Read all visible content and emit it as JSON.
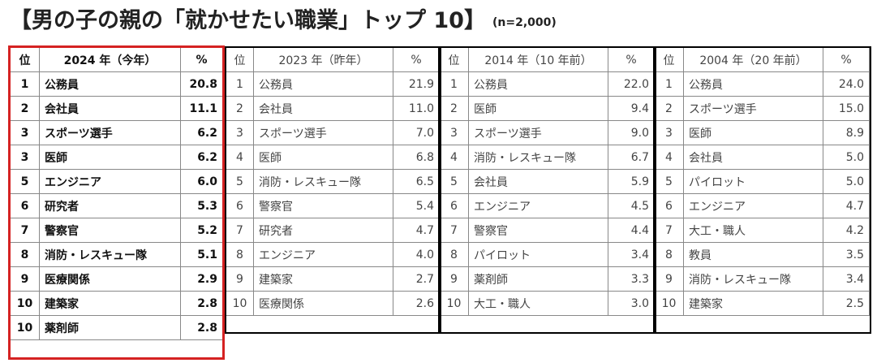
{
  "title": "【男の子の親の「就かせたい職業」トップ 10】",
  "subtitle": "(n=2,000)",
  "tables": [
    {
      "headers": [
        "位",
        "2024 年（今年）",
        "%"
      ],
      "rows": [
        [
          "1",
          "公務員",
          "20.8"
        ],
        [
          "2",
          "会社員",
          "11.1"
        ],
        [
          "3",
          "スポーツ選手",
          "6.2"
        ],
        [
          "3",
          "医師",
          "6.2"
        ],
        [
          "5",
          "エンジニア",
          "6.0"
        ],
        [
          "6",
          "研究者",
          "5.3"
        ],
        [
          "7",
          "警察官",
          "5.2"
        ],
        [
          "8",
          "消防・レスキュー隊",
          "5.1"
        ],
        [
          "9",
          "医療関係",
          "2.9"
        ],
        [
          "10",
          "建築家",
          "2.8"
        ],
        [
          "10",
          "薬剤師",
          "2.8"
        ]
      ]
    },
    {
      "headers": [
        "位",
        "2023 年（昨年）",
        "%"
      ],
      "rows": [
        [
          "1",
          "公務員",
          "21.9"
        ],
        [
          "2",
          "会社員",
          "11.0"
        ],
        [
          "3",
          "スポーツ選手",
          "7.0"
        ],
        [
          "4",
          "医師",
          "6.8"
        ],
        [
          "5",
          "消防・レスキュー隊",
          "6.5"
        ],
        [
          "6",
          "警察官",
          "5.4"
        ],
        [
          "7",
          "研究者",
          "4.7"
        ],
        [
          "8",
          "エンジニア",
          "4.0"
        ],
        [
          "9",
          "建築家",
          "2.7"
        ],
        [
          "10",
          "医療関係",
          "2.6"
        ]
      ]
    },
    {
      "headers": [
        "位",
        "2014 年（10 年前）",
        "%"
      ],
      "rows": [
        [
          "1",
          "公務員",
          "22.0"
        ],
        [
          "2",
          "医師",
          "9.4"
        ],
        [
          "3",
          "スポーツ選手",
          "9.0"
        ],
        [
          "4",
          "消防・レスキュー隊",
          "6.7"
        ],
        [
          "5",
          "会社員",
          "5.9"
        ],
        [
          "6",
          "エンジニア",
          "4.5"
        ],
        [
          "7",
          "警察官",
          "4.4"
        ],
        [
          "8",
          "パイロット",
          "3.4"
        ],
        [
          "9",
          "薬剤師",
          "3.3"
        ],
        [
          "10",
          "大工・職人",
          "3.0"
        ]
      ]
    },
    {
      "headers": [
        "位",
        "2004 年（20 年前）",
        "%"
      ],
      "rows": [
        [
          "1",
          "公務員",
          "24.0"
        ],
        [
          "2",
          "スポーツ選手",
          "15.0"
        ],
        [
          "3",
          "医師",
          "8.9"
        ],
        [
          "4",
          "会社員",
          "5.0"
        ],
        [
          "5",
          "パイロット",
          "5.0"
        ],
        [
          "6",
          "エンジニア",
          "4.7"
        ],
        [
          "7",
          "大工・職人",
          "4.2"
        ],
        [
          "8",
          "教員",
          "3.5"
        ],
        [
          "9",
          "消防・レスキュー隊",
          "3.4"
        ],
        [
          "10",
          "建築家",
          "2.5"
        ]
      ]
    }
  ],
  "colors": {
    "highlight": "#d52222",
    "border": "#888888"
  }
}
